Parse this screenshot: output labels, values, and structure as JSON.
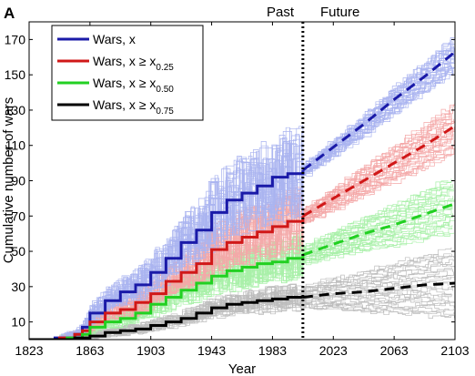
{
  "chart_data": {
    "type": "line",
    "panel_label": "A",
    "xlabel": "Year",
    "ylabel": "Cumulative number of wars",
    "xlim": [
      1823,
      2103
    ],
    "ylim": [
      0,
      180
    ],
    "xticks": [
      1823,
      1863,
      1903,
      1943,
      1983,
      2023,
      2063,
      2103
    ],
    "yticks": [
      10,
      30,
      50,
      70,
      90,
      110,
      130,
      150,
      170
    ],
    "divider_year": 2003,
    "annotations": {
      "past": "Past",
      "future": "Future"
    },
    "legend_position": "top-left",
    "series": [
      {
        "name": "Wars, x",
        "label_main": "Wars, x",
        "label_sub": "",
        "color": "#1a1aa8",
        "band_color": "#aab4f0",
        "observed": [
          [
            1823,
            0
          ],
          [
            1840,
            1
          ],
          [
            1853,
            3
          ],
          [
            1858,
            7
          ],
          [
            1863,
            15
          ],
          [
            1873,
            22
          ],
          [
            1883,
            27
          ],
          [
            1893,
            31
          ],
          [
            1903,
            38
          ],
          [
            1913,
            46
          ],
          [
            1923,
            55
          ],
          [
            1933,
            62
          ],
          [
            1943,
            72
          ],
          [
            1953,
            79
          ],
          [
            1963,
            83
          ],
          [
            1973,
            87
          ],
          [
            1983,
            92
          ],
          [
            1993,
            94
          ],
          [
            2003,
            96
          ]
        ],
        "forecast": [
          [
            2003,
            96
          ],
          [
            2023,
            109
          ],
          [
            2043,
            122
          ],
          [
            2063,
            136
          ],
          [
            2083,
            149
          ],
          [
            2103,
            163
          ]
        ],
        "band_spread": 10
      },
      {
        "name": "Wars, x ≥ x0.25",
        "label_main": "Wars, x ≥ x",
        "label_sub": "0.25",
        "color": "#d01818",
        "band_color": "#f4a8a8",
        "observed": [
          [
            1823,
            0
          ],
          [
            1843,
            1
          ],
          [
            1853,
            3
          ],
          [
            1858,
            5
          ],
          [
            1863,
            10
          ],
          [
            1873,
            15
          ],
          [
            1883,
            17
          ],
          [
            1893,
            21
          ],
          [
            1903,
            26
          ],
          [
            1913,
            33
          ],
          [
            1923,
            38
          ],
          [
            1933,
            43
          ],
          [
            1943,
            51
          ],
          [
            1953,
            55
          ],
          [
            1963,
            58
          ],
          [
            1973,
            61
          ],
          [
            1983,
            64
          ],
          [
            1993,
            67
          ],
          [
            2003,
            70
          ]
        ],
        "forecast": [
          [
            2003,
            70
          ],
          [
            2023,
            80
          ],
          [
            2043,
            90
          ],
          [
            2063,
            100
          ],
          [
            2083,
            110
          ],
          [
            2103,
            121
          ]
        ],
        "band_spread": 14
      },
      {
        "name": "Wars, x ≥ x0.50",
        "label_main": "Wars, x ≥ x",
        "label_sub": "0.50",
        "color": "#22d022",
        "band_color": "#a8f0a8",
        "observed": [
          [
            1823,
            0
          ],
          [
            1848,
            1
          ],
          [
            1858,
            3
          ],
          [
            1863,
            7
          ],
          [
            1873,
            10
          ],
          [
            1883,
            12
          ],
          [
            1893,
            15
          ],
          [
            1903,
            20
          ],
          [
            1913,
            24
          ],
          [
            1923,
            28
          ],
          [
            1933,
            32
          ],
          [
            1943,
            36
          ],
          [
            1953,
            39
          ],
          [
            1963,
            41
          ],
          [
            1973,
            43
          ],
          [
            1983,
            44
          ],
          [
            1993,
            46
          ],
          [
            2003,
            48
          ]
        ],
        "forecast": [
          [
            2003,
            48
          ],
          [
            2023,
            54
          ],
          [
            2043,
            60
          ],
          [
            2063,
            65
          ],
          [
            2083,
            71
          ],
          [
            2103,
            77
          ]
        ],
        "band_spread": 16
      },
      {
        "name": "Wars, x ≥ x0.75",
        "label_main": "Wars, x ≥ x",
        "label_sub": "0.75",
        "color": "#000000",
        "band_color": "#bdbdbd",
        "observed": [
          [
            1823,
            0
          ],
          [
            1853,
            1
          ],
          [
            1863,
            2
          ],
          [
            1873,
            4
          ],
          [
            1883,
            5
          ],
          [
            1893,
            6
          ],
          [
            1903,
            8
          ],
          [
            1913,
            10
          ],
          [
            1923,
            12
          ],
          [
            1933,
            15
          ],
          [
            1943,
            18
          ],
          [
            1953,
            20
          ],
          [
            1963,
            21
          ],
          [
            1973,
            22
          ],
          [
            1983,
            23
          ],
          [
            1993,
            24
          ],
          [
            2003,
            24
          ]
        ],
        "forecast": [
          [
            2003,
            24
          ],
          [
            2023,
            26
          ],
          [
            2043,
            27
          ],
          [
            2063,
            29
          ],
          [
            2083,
            31
          ],
          [
            2103,
            32
          ]
        ],
        "band_spread": 20
      }
    ]
  }
}
